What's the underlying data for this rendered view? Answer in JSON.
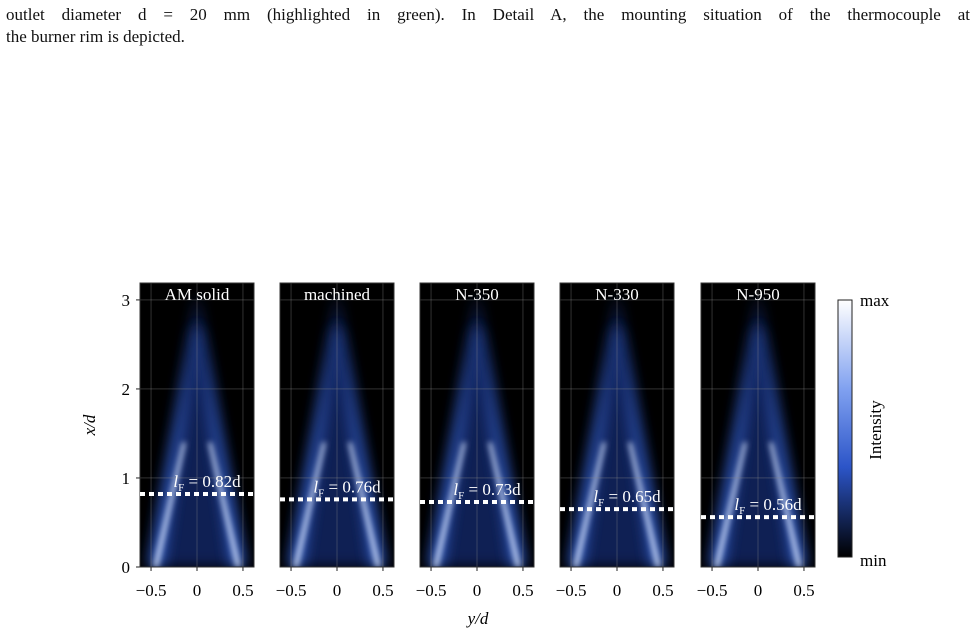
{
  "paragraph": [
    "outlet diameter d = 20 mm (highlighted in green). In Detail A, the mounting situation of the thermocouple at",
    "the burner rim is depicted."
  ],
  "figure": {
    "panels": [
      {
        "title": "AM solid",
        "flame_length": 0.82,
        "flame_label": [
          "l",
          "F",
          " = 0.82d"
        ]
      },
      {
        "title": "machined",
        "flame_length": 0.76,
        "flame_label": [
          "l",
          "F",
          " = 0.76d"
        ]
      },
      {
        "title": "N-350",
        "flame_length": 0.73,
        "flame_label": [
          "l",
          "F",
          " = 0.73d"
        ]
      },
      {
        "title": "N-330",
        "flame_length": 0.65,
        "flame_label": [
          "l",
          "F",
          " = 0.65d"
        ]
      },
      {
        "title": "N-950",
        "flame_length": 0.56,
        "flame_label": [
          "l",
          "F",
          " = 0.56d"
        ]
      }
    ],
    "xlim": [
      -0.62,
      0.62
    ],
    "ylim": [
      0,
      3.19
    ],
    "xticks": [
      {
        "value": -0.5,
        "label": "−0.5"
      },
      0,
      0.5
    ],
    "yticks": [
      0,
      1,
      2,
      3
    ],
    "xlabel": "y/d",
    "ylabel": "x/d",
    "colorbar": {
      "label": "Intensity",
      "max": "max",
      "min": "min"
    }
  }
}
